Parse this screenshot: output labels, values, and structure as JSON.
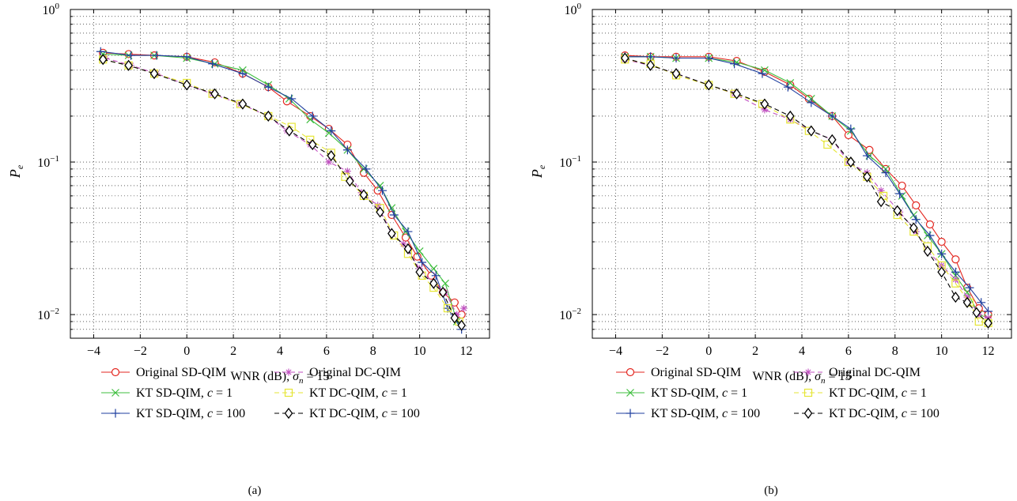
{
  "figure": {
    "panels": [
      "(a)",
      "(b)"
    ]
  },
  "colors": {
    "original_sd": "#e3261f",
    "kt_sd_c1": "#3fbf3f",
    "kt_sd_c100": "#1f3f9f",
    "original_dc": "#c050c0",
    "kt_dc_c1": "#e6e635",
    "kt_dc_c100": "#000000"
  },
  "chart_data": [
    {
      "type": "line",
      "panel_label": "(a)",
      "xlabel": "WNR (dB), σn = 15",
      "ylabel": "Pe",
      "xlim": [
        -5,
        13
      ],
      "ylim": [
        0.007,
        1
      ],
      "yscale": "log",
      "xticks": [
        "−4",
        "−2",
        "0",
        "2",
        "4",
        "6",
        "8",
        "10",
        "12"
      ],
      "yticks": [
        "10⁰",
        "10⁻¹",
        "10⁻²"
      ],
      "grid": true,
      "legend_position": "below",
      "series": [
        {
          "name": "Original SD-QIM",
          "style": "solid",
          "marker": "circle",
          "color_key": "original_sd",
          "x": [
            -3.6,
            -2.5,
            -1.4,
            0.0,
            1.2,
            2.4,
            3.5,
            4.3,
            5.3,
            6.1,
            6.9,
            7.6,
            8.2,
            8.8,
            9.4,
            9.9,
            10.5,
            11.0,
            11.5,
            11.8
          ],
          "y": [
            0.52,
            0.51,
            0.5,
            0.49,
            0.45,
            0.38,
            0.31,
            0.25,
            0.2,
            0.165,
            0.13,
            0.085,
            0.065,
            0.045,
            0.032,
            0.024,
            0.018,
            0.014,
            0.012,
            0.01
          ]
        },
        {
          "name": "KT SD-QIM, c = 1",
          "style": "solid",
          "marker": "x",
          "color_key": "kt_sd_c1",
          "x": [
            -3.6,
            -2.5,
            -1.4,
            0.0,
            1.2,
            2.4,
            3.5,
            4.4,
            5.3,
            6.1,
            6.9,
            7.6,
            8.3,
            8.8,
            9.4,
            10.0,
            10.6,
            11.1,
            11.6
          ],
          "y": [
            0.51,
            0.5,
            0.5,
            0.48,
            0.44,
            0.4,
            0.32,
            0.26,
            0.19,
            0.155,
            0.12,
            0.09,
            0.07,
            0.05,
            0.035,
            0.026,
            0.02,
            0.016,
            0.009
          ]
        },
        {
          "name": "KT SD-QIM, c = 100",
          "style": "solid",
          "marker": "plus",
          "color_key": "kt_sd_c100",
          "x": [
            -3.7,
            -2.4,
            -1.3,
            0.0,
            1.1,
            2.4,
            3.5,
            4.5,
            5.4,
            6.2,
            6.9,
            7.7,
            8.4,
            8.9,
            9.5,
            10.1,
            10.7,
            11.2,
            11.8
          ],
          "y": [
            0.53,
            0.5,
            0.5,
            0.49,
            0.44,
            0.38,
            0.31,
            0.26,
            0.2,
            0.16,
            0.12,
            0.09,
            0.065,
            0.045,
            0.035,
            0.022,
            0.018,
            0.011,
            0.008
          ]
        },
        {
          "name": "Original DC-QIM",
          "style": "dashed",
          "marker": "asterisk",
          "color_key": "original_dc",
          "x": [
            -3.5,
            -2.4,
            -1.3,
            0.0,
            1.1,
            2.3,
            3.5,
            4.3,
            5.3,
            6.1,
            6.9,
            7.5,
            8.2,
            8.8,
            9.3,
            10.0,
            10.6,
            11.1,
            11.6,
            11.9
          ],
          "y": [
            0.48,
            0.43,
            0.38,
            0.32,
            0.28,
            0.24,
            0.2,
            0.16,
            0.13,
            0.1,
            0.087,
            0.063,
            0.052,
            0.034,
            0.029,
            0.02,
            0.016,
            0.014,
            0.01,
            0.011
          ]
        },
        {
          "name": "KT DC-QIM, c = 1",
          "style": "dashed",
          "marker": "square",
          "color_key": "kt_dc_c1",
          "x": [
            -3.6,
            -2.5,
            -1.4,
            0.0,
            1.1,
            2.3,
            3.5,
            4.5,
            5.3,
            6.2,
            6.8,
            7.6,
            8.3,
            8.9,
            9.5,
            10.1,
            10.6,
            11.2,
            11.7
          ],
          "y": [
            0.47,
            0.43,
            0.38,
            0.33,
            0.28,
            0.24,
            0.2,
            0.17,
            0.14,
            0.115,
            0.08,
            0.06,
            0.05,
            0.033,
            0.025,
            0.018,
            0.015,
            0.011,
            0.009
          ]
        },
        {
          "name": "KT DC-QIM, c = 100",
          "style": "dashed",
          "marker": "diamond",
          "color_key": "kt_dc_c100",
          "x": [
            -3.6,
            -2.5,
            -1.4,
            0.0,
            1.2,
            2.4,
            3.5,
            4.4,
            5.4,
            6.2,
            7.0,
            7.6,
            8.3,
            8.8,
            9.5,
            10.0,
            10.6,
            11.0,
            11.5,
            11.8
          ],
          "y": [
            0.47,
            0.43,
            0.38,
            0.32,
            0.28,
            0.24,
            0.2,
            0.16,
            0.13,
            0.11,
            0.075,
            0.061,
            0.047,
            0.034,
            0.027,
            0.019,
            0.016,
            0.014,
            0.0095,
            0.0085
          ]
        }
      ]
    },
    {
      "type": "line",
      "panel_label": "(b)",
      "xlabel": "WNR (dB), σn = 15",
      "ylabel": "Pe",
      "xlim": [
        -5,
        13
      ],
      "ylim": [
        0.007,
        1
      ],
      "yscale": "log",
      "xticks": [
        "−4",
        "−2",
        "0",
        "2",
        "4",
        "6",
        "8",
        "10",
        "12"
      ],
      "yticks": [
        "10⁰",
        "10⁻¹",
        "10⁻²"
      ],
      "grid": true,
      "legend_position": "below",
      "series": [
        {
          "name": "Original SD-QIM",
          "style": "solid",
          "marker": "circle",
          "color_key": "original_sd",
          "x": [
            -3.6,
            -2.5,
            -1.4,
            0.0,
            1.2,
            2.4,
            3.5,
            4.3,
            5.3,
            6.0,
            6.9,
            7.6,
            8.3,
            8.9,
            9.5,
            10.0,
            10.6,
            11.1,
            11.6,
            12.0
          ],
          "y": [
            0.5,
            0.49,
            0.49,
            0.49,
            0.46,
            0.39,
            0.32,
            0.26,
            0.2,
            0.15,
            0.12,
            0.09,
            0.07,
            0.052,
            0.039,
            0.03,
            0.023,
            0.015,
            0.011,
            0.01
          ]
        },
        {
          "name": "KT SD-QIM, c = 1",
          "style": "solid",
          "marker": "x",
          "color_key": "kt_sd_c1",
          "x": [
            -3.6,
            -2.5,
            -1.4,
            0.0,
            1.2,
            2.4,
            3.5,
            4.4,
            5.3,
            6.1,
            6.9,
            7.6,
            8.3,
            8.8,
            9.4,
            10.0,
            10.6,
            11.1,
            11.6,
            12.0
          ],
          "y": [
            0.49,
            0.49,
            0.48,
            0.48,
            0.45,
            0.4,
            0.33,
            0.26,
            0.2,
            0.16,
            0.11,
            0.09,
            0.06,
            0.045,
            0.033,
            0.025,
            0.018,
            0.014,
            0.01,
            0.0095
          ]
        },
        {
          "name": "KT SD-QIM, c = 100",
          "style": "solid",
          "marker": "plus",
          "color_key": "kt_sd_c100",
          "x": [
            -3.6,
            -2.5,
            -1.4,
            0.0,
            1.1,
            2.3,
            3.4,
            4.4,
            5.3,
            6.1,
            6.8,
            7.6,
            8.2,
            8.9,
            9.5,
            10.0,
            10.6,
            11.2,
            11.7,
            12.0
          ],
          "y": [
            0.49,
            0.49,
            0.48,
            0.48,
            0.44,
            0.38,
            0.31,
            0.245,
            0.2,
            0.165,
            0.11,
            0.085,
            0.062,
            0.042,
            0.033,
            0.025,
            0.019,
            0.015,
            0.012,
            0.0105
          ]
        },
        {
          "name": "Original DC-QIM",
          "style": "dashed",
          "marker": "asterisk",
          "color_key": "original_dc",
          "x": [
            -3.6,
            -2.5,
            -1.4,
            0.0,
            1.1,
            2.4,
            3.5,
            4.4,
            5.3,
            6.0,
            6.8,
            7.4,
            8.2,
            8.9,
            9.4,
            10.0,
            10.6,
            11.1,
            11.6,
            12.0
          ],
          "y": [
            0.47,
            0.43,
            0.38,
            0.32,
            0.28,
            0.22,
            0.19,
            0.16,
            0.14,
            0.1,
            0.085,
            0.065,
            0.047,
            0.035,
            0.026,
            0.021,
            0.017,
            0.013,
            0.01,
            0.0095
          ]
        },
        {
          "name": "KT DC-QIM, c = 1",
          "style": "dashed",
          "marker": "square",
          "color_key": "kt_dc_c1",
          "x": [
            -3.6,
            -2.5,
            -1.4,
            0.0,
            1.1,
            2.3,
            3.5,
            4.3,
            5.1,
            6.0,
            6.8,
            7.5,
            8.1,
            8.8,
            9.4,
            10.0,
            10.6,
            11.2,
            11.6,
            12.0
          ],
          "y": [
            0.47,
            0.44,
            0.37,
            0.32,
            0.28,
            0.24,
            0.19,
            0.16,
            0.13,
            0.1,
            0.08,
            0.06,
            0.045,
            0.035,
            0.028,
            0.021,
            0.016,
            0.012,
            0.009,
            0.0088
          ]
        },
        {
          "name": "KT DC-QIM, c = 100",
          "style": "dashed",
          "marker": "diamond",
          "color_key": "kt_dc_c100",
          "x": [
            -3.6,
            -2.5,
            -1.4,
            0.0,
            1.2,
            2.4,
            3.5,
            4.4,
            5.3,
            6.1,
            6.8,
            7.4,
            8.1,
            8.8,
            9.4,
            10.0,
            10.6,
            11.1,
            11.5,
            12.0
          ],
          "y": [
            0.48,
            0.43,
            0.38,
            0.32,
            0.28,
            0.24,
            0.2,
            0.16,
            0.14,
            0.1,
            0.08,
            0.055,
            0.048,
            0.037,
            0.026,
            0.019,
            0.013,
            0.012,
            0.0103,
            0.0088
          ]
        }
      ]
    }
  ]
}
